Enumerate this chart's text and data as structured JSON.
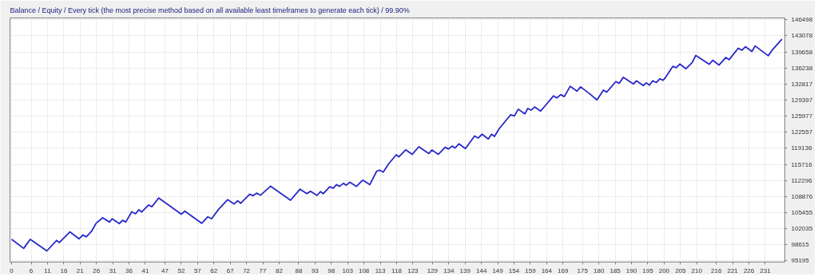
{
  "chart_data": {
    "type": "line",
    "title": "Balance / Equity / Every tick (the most precise method based on all available least timeframes to generate each tick) / 99.90%",
    "x": [
      0,
      3.7,
      5.7,
      10.8,
      13.8,
      14.6,
      17.9,
      20.7,
      21.8,
      22.9,
      24.5,
      25.9,
      27.9,
      30.0,
      30.8,
      33.0,
      34.0,
      35.0,
      36.8,
      38.0,
      39.0,
      39.9,
      42.0,
      43.0,
      45.1,
      52.0,
      53.1,
      58.3,
      60.1,
      61.3,
      63.4,
      66.2,
      68.2,
      69.3,
      70.2,
      73.0,
      74.0,
      75.1,
      76.3,
      79.4,
      85.5,
      88.4,
      90.5,
      91.6,
      93.6,
      94.7,
      95.5,
      97.5,
      98.6,
      99.6,
      100.5,
      101.7,
      102.6,
      103.7,
      105.7,
      107.6,
      109.8,
      111.9,
      112.8,
      113.9,
      115.5,
      117.9,
      118.7,
      120.8,
      122.8,
      124.8,
      127.9,
      128.8,
      130.8,
      132.9,
      133.9,
      135.0,
      135.9,
      137.1,
      139.1,
      141.9,
      143.0,
      144.2,
      146.1,
      147.1,
      148.0,
      149.5,
      153.0,
      154.1,
      155.3,
      157.3,
      158.2,
      159.2,
      160.3,
      162.1,
      163.5,
      166.1,
      167.1,
      168.3,
      169.4,
      171.2,
      173.3,
      174.4,
      177.2,
      179.4,
      181.4,
      182.4,
      185.2,
      186.2,
      187.5,
      190.6,
      191.5,
      193.6,
      194.5,
      195.5,
      196.5,
      197.6,
      198.7,
      199.7,
      200.5,
      202.7,
      203.7,
      204.8,
      206.7,
      208.6,
      209.7,
      213.8,
      214.9,
      216.8,
      218.9,
      219.9,
      222.7,
      223.9,
      224.9,
      226.9,
      227.9,
      231.9,
      233.1,
      236.1
    ],
    "series": [
      {
        "color": "#2828c8",
        "values": [
          99730,
          97810,
          99730,
          97280,
          99520,
          99040,
          101330,
          99840,
          100650,
          100280,
          101450,
          103160,
          104330,
          103420,
          104120,
          103100,
          103800,
          103420,
          105610,
          105180,
          106050,
          105570,
          107060,
          106690,
          108550,
          105090,
          105730,
          103160,
          104540,
          104120,
          106100,
          108180,
          107270,
          107970,
          107430,
          109350,
          109030,
          109570,
          109140,
          111060,
          108070,
          110420,
          109460,
          109990,
          109090,
          109900,
          109460,
          110950,
          110630,
          111390,
          111020,
          111660,
          111270,
          111910,
          111020,
          112350,
          111390,
          114270,
          114480,
          114060,
          115760,
          117750,
          117320,
          118810,
          117850,
          119450,
          118010,
          118760,
          117850,
          119350,
          118970,
          119610,
          119190,
          120090,
          119080,
          121760,
          121320,
          122130,
          121120,
          122130,
          121650,
          123360,
          126290,
          126020,
          127460,
          126450,
          127620,
          127260,
          127940,
          127050,
          128170,
          130300,
          129870,
          130570,
          130140,
          132340,
          131310,
          132220,
          130730,
          129450,
          131540,
          131100,
          133350,
          132980,
          134260,
          132820,
          133510,
          132500,
          133070,
          132590,
          133510,
          133140,
          133940,
          133620,
          134310,
          136600,
          136280,
          137080,
          136070,
          137400,
          138910,
          137030,
          137880,
          136870,
          138480,
          138000,
          140450,
          140030,
          140770,
          139760,
          140930,
          138850,
          140030,
          142370
        ]
      }
    ],
    "xlim": [
      -0.5,
      237
    ],
    "ylim": [
      94900,
      146900
    ],
    "xticks": [
      0,
      6,
      11,
      16,
      21,
      26,
      31,
      36,
      41,
      47,
      52,
      57,
      62,
      67,
      72,
      77,
      82,
      88,
      93,
      98,
      103,
      108,
      113,
      118,
      123,
      129,
      134,
      139,
      144,
      149,
      154,
      159,
      164,
      169,
      175,
      180,
      185,
      190,
      195,
      200,
      205,
      210,
      216,
      221,
      226,
      231
    ],
    "yticks": [
      95195,
      98615,
      102035,
      105455,
      108876,
      112296,
      115716,
      119136,
      122557,
      125977,
      129397,
      132817,
      136238,
      139658,
      143078,
      146498
    ],
    "grid": true,
    "line_style": "solid"
  }
}
